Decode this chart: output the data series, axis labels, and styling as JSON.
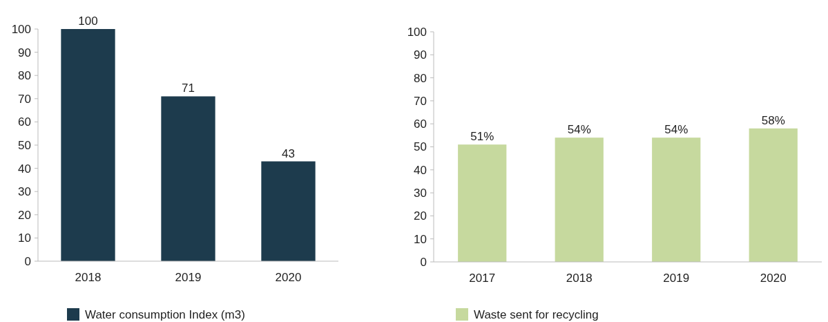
{
  "chart_data": [
    {
      "type": "bar",
      "categories": [
        "2018",
        "2019",
        "2020"
      ],
      "series": [
        {
          "name": "Water consumption Index (m3)",
          "color": "#1d3b4d",
          "values": [
            100,
            71,
            43
          ]
        }
      ],
      "ylim": [
        0,
        100
      ],
      "yticks": [
        0,
        10,
        20,
        30,
        40,
        50,
        60,
        70,
        80,
        90,
        100
      ],
      "data_labels": true,
      "legend": "bottom",
      "grid": false
    },
    {
      "type": "bar",
      "categories": [
        "2017",
        "2018",
        "2019",
        "2020"
      ],
      "series": [
        {
          "name": "Waste sent for recycling",
          "color": "#c6d99e",
          "values": [
            51,
            54,
            54,
            58
          ],
          "value_labels": [
            "51%",
            "54%",
            "54%",
            "58%"
          ]
        }
      ],
      "ylim": [
        0,
        100
      ],
      "yticks": [
        0,
        10,
        20,
        30,
        40,
        50,
        60,
        70,
        80,
        90,
        100
      ],
      "legend": "bottom",
      "grid": false
    }
  ]
}
